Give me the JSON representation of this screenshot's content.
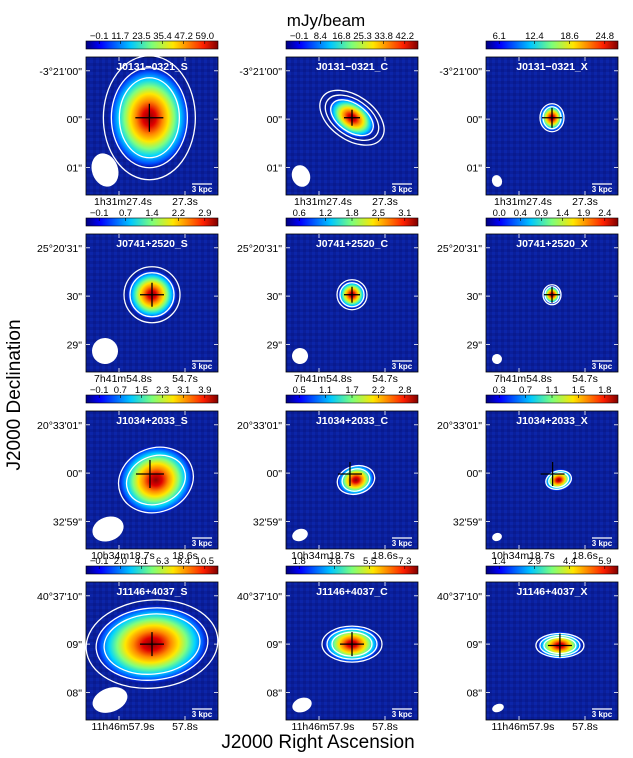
{
  "figure": {
    "colorbar_title": "mJy/beam",
    "xlabel": "J2000 Right Ascension",
    "ylabel": "J2000 Declination",
    "scale_bar_label": "3 kpc"
  },
  "rows": [
    {
      "dec_labels": [
        "-3°21'00\"",
        "00\"",
        "01\""
      ],
      "ra_labels": [
        "1h31m27.4s",
        "27.3s"
      ],
      "panels": [
        {
          "title": "J0131−0321_S",
          "cbar_ticks": [
            "−0.1",
            "11.7",
            "23.5",
            "35.4",
            "47.2",
            "59.0"
          ]
        },
        {
          "title": "J0131−0321_C",
          "cbar_ticks": [
            "−0.1",
            "8.4",
            "16.8",
            "25.3",
            "33.8",
            "42.2"
          ]
        },
        {
          "title": "J0131−0321_X",
          "cbar_ticks": [
            "6.1",
            "12.4",
            "18.6",
            "24.8"
          ]
        }
      ]
    },
    {
      "dec_labels": [
        "25°20'31\"",
        "30\"",
        "29\""
      ],
      "ra_labels": [
        "7h41m54.8s",
        "54.7s"
      ],
      "panels": [
        {
          "title": "J0741+2520_S",
          "cbar_ticks": [
            "−0.1",
            "0.7",
            "1.4",
            "2.2",
            "2.9"
          ]
        },
        {
          "title": "J0741+2520_C",
          "cbar_ticks": [
            "0.6",
            "1.2",
            "1.8",
            "2.5",
            "3.1"
          ]
        },
        {
          "title": "J0741+2520_X",
          "cbar_ticks": [
            "0.0",
            "0.4",
            "0.9",
            "1.4",
            "1.9",
            "2.4"
          ]
        }
      ]
    },
    {
      "dec_labels": [
        "20°33'01\"",
        "00\"",
        "32'59\""
      ],
      "ra_labels": [
        "10h34m18.7s",
        "18.6s"
      ],
      "panels": [
        {
          "title": "J1034+2033_S",
          "cbar_ticks": [
            "−0.1",
            "0.7",
            "1.5",
            "2.3",
            "3.1",
            "3.9"
          ]
        },
        {
          "title": "J1034+2033_C",
          "cbar_ticks": [
            "0.5",
            "1.1",
            "1.7",
            "2.2",
            "2.8"
          ]
        },
        {
          "title": "J1034+2033_X",
          "cbar_ticks": [
            "0.3",
            "0.7",
            "1.1",
            "1.5",
            "1.8"
          ]
        }
      ]
    },
    {
      "dec_labels": [
        "40°37'10\"",
        "09\"",
        "08\""
      ],
      "ra_labels": [
        "11h46m57.9s",
        "57.8s"
      ],
      "panels": [
        {
          "title": "J1146+4037_S",
          "cbar_ticks": [
            "−0.1",
            "2.0",
            "4.1",
            "6.3",
            "8.4",
            "10.5"
          ]
        },
        {
          "title": "J1146+4037_C",
          "cbar_ticks": [
            "1.8",
            "3.6",
            "5.5",
            "7.3"
          ]
        },
        {
          "title": "J1146+4037_X",
          "cbar_ticks": [
            "1.4",
            "2.9",
            "4.4",
            "5.9"
          ]
        }
      ]
    }
  ]
}
